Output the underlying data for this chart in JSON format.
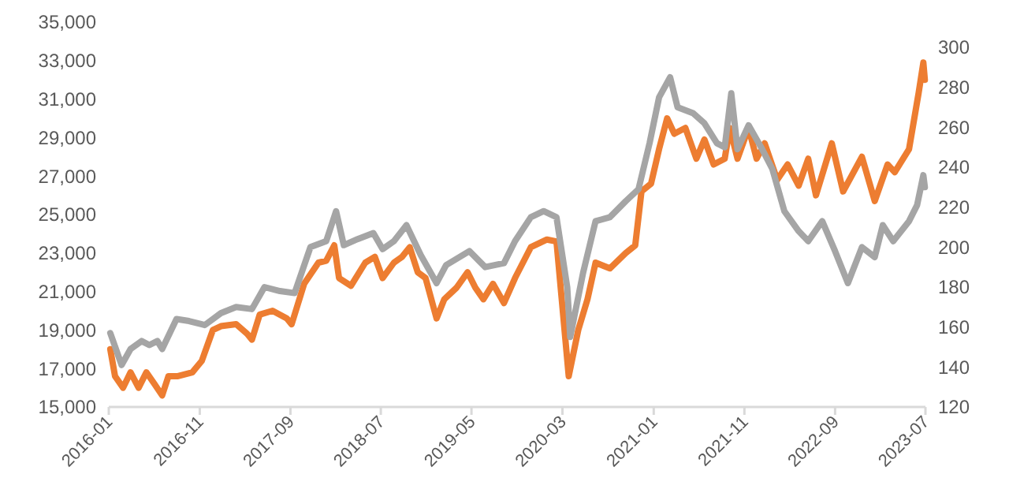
{
  "chart_data": {
    "type": "line",
    "xlim": [
      "2016-01",
      "2023-07"
    ],
    "xticks": [
      "2016-01",
      "2016-11",
      "2017-09",
      "2018-07",
      "2019-05",
      "2020-03",
      "2021-01",
      "2021-11",
      "2022-09",
      "2023-07"
    ],
    "ylim": [
      15000,
      35000
    ],
    "yticks": [
      {
        "value": 15000,
        "label": "15,000"
      },
      {
        "value": 17000,
        "label": "17,000"
      },
      {
        "value": 19000,
        "label": "19,000"
      },
      {
        "value": 21000,
        "label": "21,000"
      },
      {
        "value": 23000,
        "label": "23,000"
      },
      {
        "value": 25000,
        "label": "25,000"
      },
      {
        "value": 27000,
        "label": "27,000"
      },
      {
        "value": 29000,
        "label": "29,000"
      },
      {
        "value": 31000,
        "label": "31,000"
      },
      {
        "value": 33000,
        "label": "33,000"
      },
      {
        "value": 35000,
        "label": "35,000"
      }
    ],
    "y2lim": [
      120,
      300
    ],
    "y2ticks": [
      120,
      140,
      160,
      180,
      200,
      220,
      240,
      260,
      280,
      300
    ],
    "grid": false,
    "series": [
      {
        "color": "#ed7d31",
        "x": [
          "2016-01-06",
          "2016-01-22",
          "2016-02-18",
          "2016-03-14",
          "2016-04-10",
          "2016-05-06",
          "2016-06-02",
          "2016-06-28",
          "2016-07-19",
          "2016-08-20",
          "2016-10-07",
          "2016-11-08",
          "2016-12-15",
          "2017-01-11",
          "2017-03-03",
          "2017-04-09",
          "2017-04-25",
          "2017-05-21",
          "2017-07-03",
          "2017-08-20",
          "2017-09-05",
          "2017-10-17",
          "2017-12-04",
          "2017-12-30",
          "2018-01-26",
          "2018-02-11",
          "2018-03-23",
          "2018-05-10",
          "2018-06-11",
          "2018-07-07",
          "2018-08-14",
          "2018-09-10",
          "2018-10-06",
          "2018-11-02",
          "2018-11-28",
          "2019-01-04",
          "2019-01-30",
          "2019-03-12",
          "2019-04-18",
          "2019-05-14",
          "2019-06-10",
          "2019-07-12",
          "2019-08-18",
          "2019-09-24",
          "2019-11-16",
          "2020-01-09",
          "2020-02-10",
          "2020-03-22",
          "2020-04-23",
          "2020-05-24",
          "2020-06-20",
          "2020-08-07",
          "2020-09-29",
          "2020-10-31",
          "2020-11-21",
          "2020-12-23",
          "2021-01-19",
          "2021-02-15",
          "2021-03-11",
          "2021-04-17",
          "2021-05-24",
          "2021-06-20",
          "2021-07-21",
          "2021-08-27",
          "2021-09-13",
          "2021-10-09",
          "2021-11-15",
          "2021-12-12",
          "2022-01-08",
          "2022-02-19",
          "2022-03-26",
          "2022-05-02",
          "2022-06-03",
          "2022-06-29",
          "2022-08-21",
          "2022-09-28",
          "2022-11-30",
          "2023-01-12",
          "2023-02-24",
          "2023-03-20",
          "2023-05-07",
          "2023-06-08",
          "2023-06-24",
          "2023-06-29"
        ],
        "values": [
          18000,
          16600,
          16000,
          16800,
          16000,
          16800,
          16200,
          15600,
          16600,
          16600,
          16800,
          17400,
          19000,
          19200,
          19300,
          18800,
          18500,
          19800,
          20000,
          19600,
          19300,
          21400,
          22500,
          22600,
          23400,
          21700,
          21300,
          22500,
          22800,
          21700,
          22500,
          22800,
          23300,
          22000,
          21700,
          19600,
          20600,
          21200,
          22000,
          21200,
          20600,
          21400,
          20400,
          21700,
          23300,
          23700,
          23600,
          16600,
          19000,
          20600,
          22500,
          22200,
          23000,
          23400,
          26200,
          26600,
          28400,
          30000,
          29200,
          29500,
          27900,
          28900,
          27600,
          27900,
          29500,
          27900,
          29500,
          27900,
          28700,
          26800,
          27600,
          26500,
          27900,
          26000,
          28700,
          26200,
          28000,
          25700,
          27600,
          27200,
          28400,
          31300,
          32900,
          32000
        ]
      },
      {
        "color": "#a5a5a5",
        "axis": "y2",
        "x": [
          "2016-01-06",
          "2016-02-13",
          "2016-03-14",
          "2016-04-20",
          "2016-05-16",
          "2016-06-12",
          "2016-06-28",
          "2016-08-15",
          "2016-09-26",
          "2016-11-18",
          "2017-01-11",
          "2017-03-03",
          "2017-04-25",
          "2017-06-06",
          "2017-07-28",
          "2017-09-15",
          "2017-11-07",
          "2017-12-30",
          "2018-02-01",
          "2018-02-27",
          "2018-04-14",
          "2018-06-06",
          "2018-07-07",
          "2018-08-14",
          "2018-09-25",
          "2018-11-12",
          "2019-01-04",
          "2019-02-05",
          "2019-04-24",
          "2019-06-16",
          "2019-08-18",
          "2019-09-24",
          "2019-11-16",
          "2019-12-29",
          "2020-02-10",
          "2020-03-17",
          "2020-03-27",
          "2020-05-09",
          "2020-06-20",
          "2020-08-07",
          "2020-09-29",
          "2020-11-11",
          "2020-12-18",
          "2021-01-19",
          "2021-02-25",
          "2021-03-22",
          "2021-05-13",
          "2021-06-20",
          "2021-08-01",
          "2021-08-27",
          "2021-09-18",
          "2021-10-09",
          "2021-11-15",
          "2021-12-27",
          "2022-02-03",
          "2022-03-15",
          "2022-05-02",
          "2022-06-03",
          "2022-07-20",
          "2022-09-01",
          "2022-10-14",
          "2022-11-30",
          "2023-01-12",
          "2023-02-08",
          "2023-03-15",
          "2023-05-07",
          "2023-06-03",
          "2023-06-24",
          "2023-06-29"
        ],
        "values": [
          157,
          141,
          149,
          153,
          151,
          153,
          149,
          164,
          163,
          161,
          167,
          170,
          169,
          180,
          178,
          177,
          200,
          203,
          218,
          201,
          204,
          207,
          199,
          203,
          211,
          196,
          182,
          191,
          198,
          190,
          192,
          203,
          215,
          218,
          215,
          180,
          155,
          187,
          213,
          215,
          223,
          229,
          252,
          275,
          285,
          270,
          267,
          262,
          252,
          250,
          277,
          249,
          261,
          250,
          239,
          218,
          208,
          203,
          213,
          198,
          182,
          200,
          195,
          211,
          203,
          213,
          221,
          236,
          230
        ]
      }
    ]
  }
}
